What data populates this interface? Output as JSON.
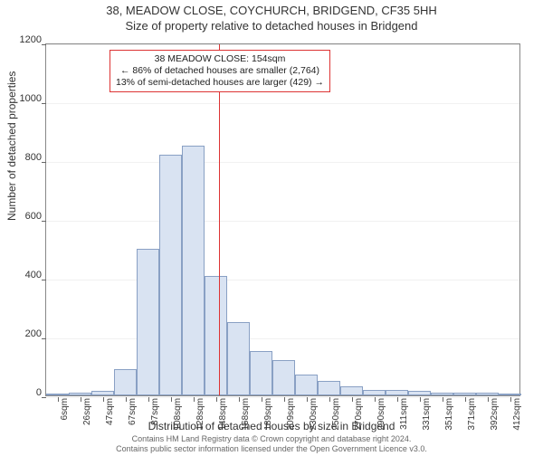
{
  "title_line1": "38, MEADOW CLOSE, COYCHURCH, BRIDGEND, CF35 5HH",
  "title_line2": "Size of property relative to detached houses in Bridgend",
  "ylabel": "Number of detached properties",
  "xlabel": "Distribution of detached houses by size in Bridgend",
  "chart": {
    "type": "histogram",
    "background_color": "#ffffff",
    "bar_fill": "#d9e3f2",
    "bar_border": "#89a0c4",
    "border_color": "#888888",
    "reference_line_color": "#d33",
    "reference_x_sqm": 154,
    "ylim": [
      0,
      1200
    ],
    "yticks": [
      0,
      200,
      400,
      600,
      800,
      1000,
      1200
    ],
    "categories": [
      "6sqm",
      "26sqm",
      "47sqm",
      "67sqm",
      "87sqm",
      "108sqm",
      "128sqm",
      "148sqm",
      "168sqm",
      "189sqm",
      "209sqm",
      "230sqm",
      "250sqm",
      "270sqm",
      "290sqm",
      "311sqm",
      "331sqm",
      "351sqm",
      "371sqm",
      "392sqm",
      "412sqm"
    ],
    "values": [
      5,
      10,
      15,
      90,
      500,
      820,
      850,
      405,
      250,
      150,
      120,
      70,
      50,
      30,
      20,
      20,
      15,
      10,
      10,
      10,
      5
    ],
    "label_fontsize": 12,
    "tick_fontsize": 10
  },
  "annotation": {
    "line1": "38 MEADOW CLOSE: 154sqm",
    "line2": "← 86% of detached houses are smaller (2,764)",
    "line3": "13% of semi-detached houses are larger (429) →"
  },
  "footer_line1": "Contains HM Land Registry data © Crown copyright and database right 2024.",
  "footer_line2": "Contains public sector information licensed under the Open Government Licence v3.0."
}
